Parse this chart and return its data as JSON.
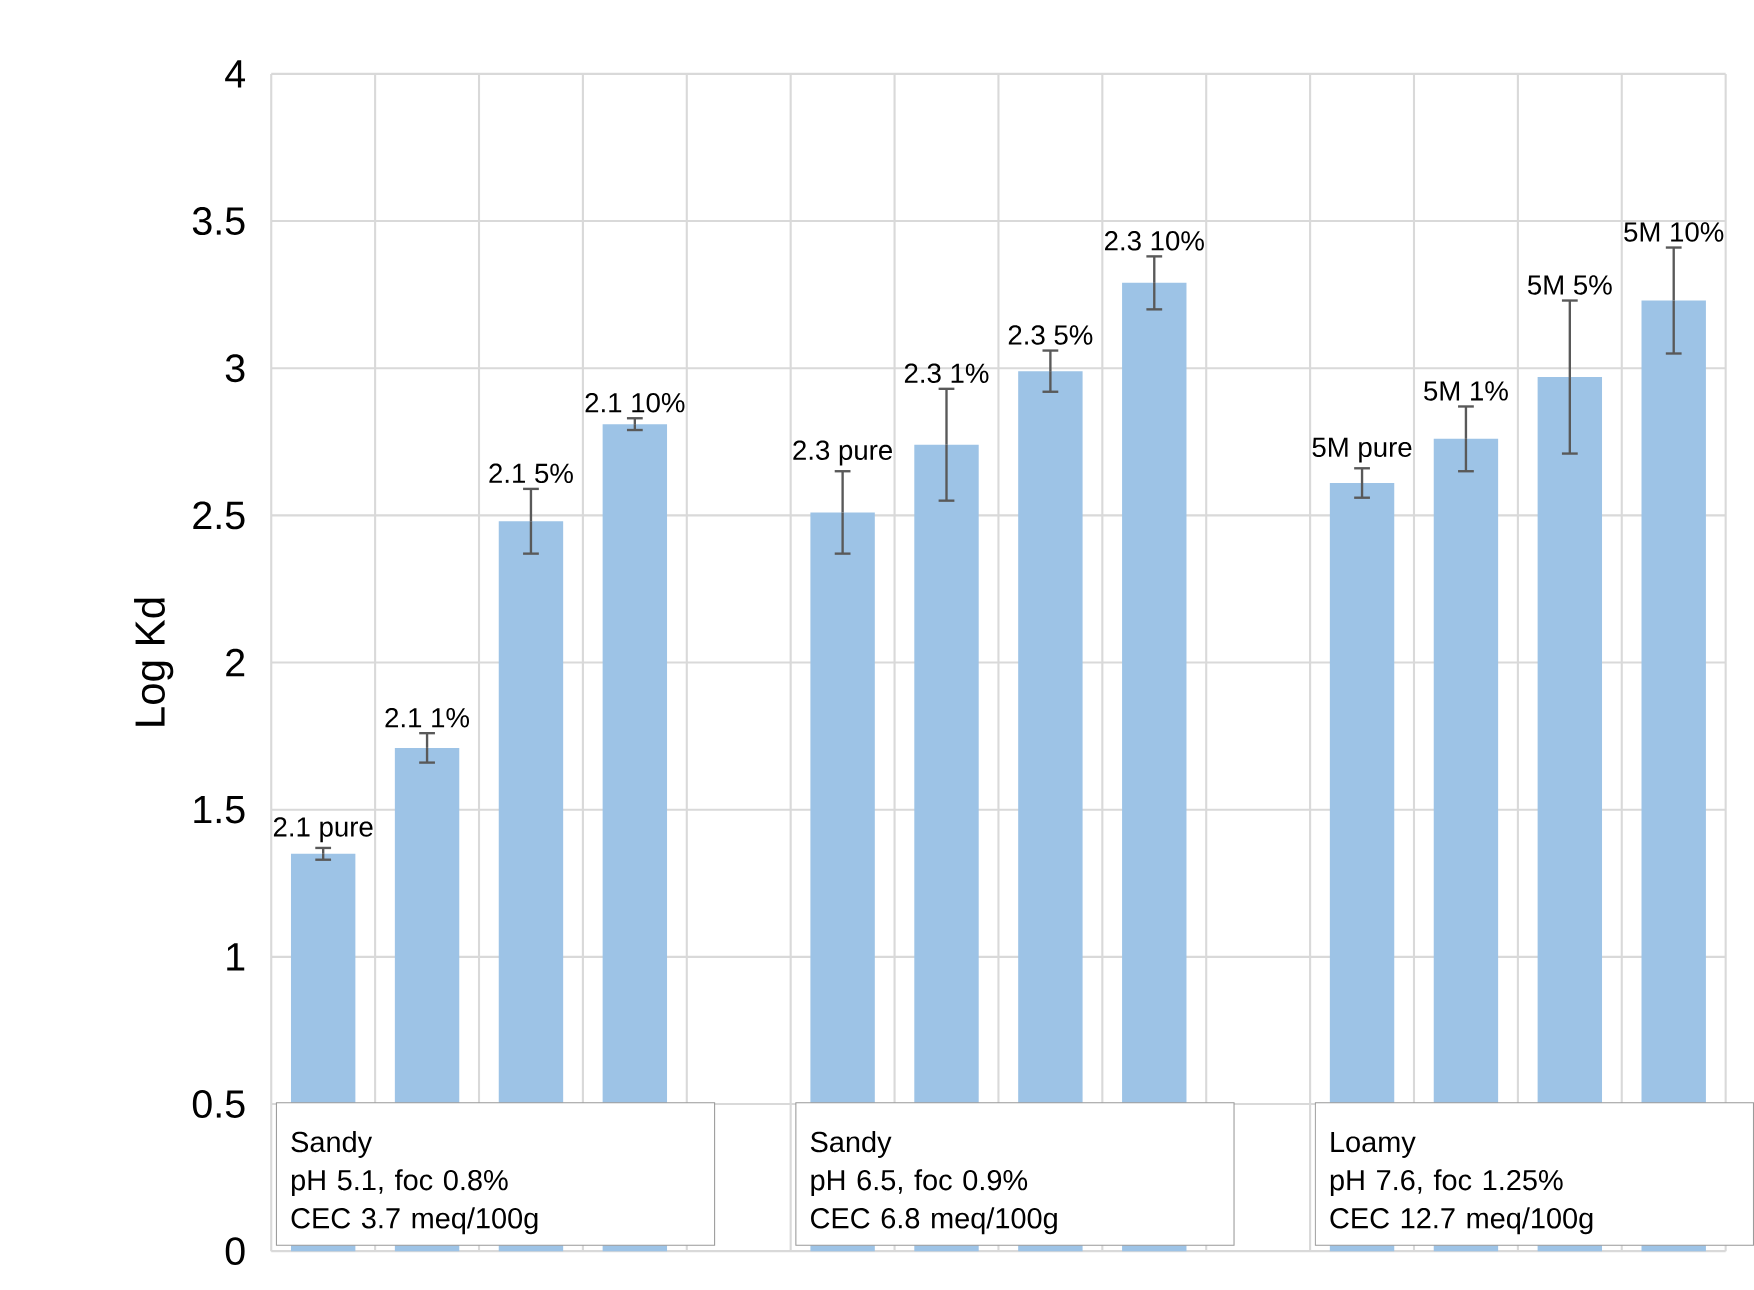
{
  "chart_data": {
    "type": "bar",
    "ylabel": "Log Kd",
    "categories": [
      "2.1 pure",
      "2.1 1%",
      "2.1 5%",
      "2.1 10%",
      null,
      "2.3 pure",
      "2.3 1%",
      "2.3 5%",
      "2.3 10%",
      null,
      "5M pure",
      "5M 1%",
      "5M 5%",
      "5M 10%"
    ],
    "values": [
      1.35,
      1.71,
      2.48,
      2.81,
      null,
      2.51,
      2.74,
      2.99,
      3.29,
      null,
      2.61,
      2.76,
      2.97,
      3.23
    ],
    "errors": [
      0.02,
      0.05,
      0.11,
      0.02,
      null,
      0.14,
      0.19,
      0.07,
      0.09,
      null,
      0.05,
      0.11,
      0.26,
      0.18
    ],
    "color": "#9dc3e6",
    "ylim": [
      0,
      4
    ],
    "yticks": [
      0,
      0.5,
      1,
      1.5,
      2,
      2.5,
      3,
      3.5,
      4
    ],
    "grid": true,
    "annotations": [
      "Sandy",
      "pH 5.1, foc 0.8%",
      "CEC 3.7 meq/100g",
      "Sandy",
      "pH 6.5, foc 0.9%",
      "CEC 6.8 meq/100g",
      "Loamy",
      "pH 7.6, foc 1.25%",
      "CEC 12.7 meq/100g"
    ]
  }
}
